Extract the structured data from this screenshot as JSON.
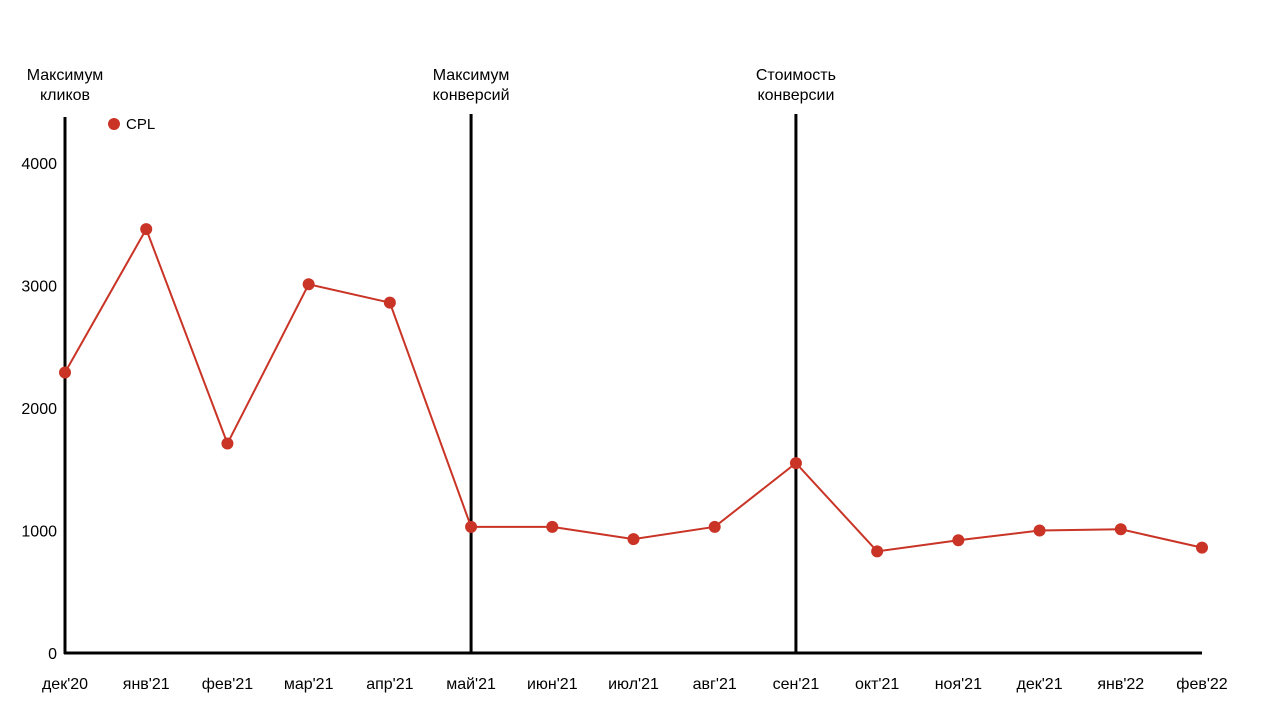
{
  "chart_data": {
    "type": "line",
    "title": "",
    "xlabel": "",
    "ylabel": "",
    "categories": [
      "дек'20",
      "янв'21",
      "фев'21",
      "мар'21",
      "апр'21",
      "май'21",
      "июн'21",
      "июл'21",
      "авг'21",
      "сен'21",
      "окт'21",
      "ноя'21",
      "дек'21",
      "янв'22",
      "фев'22"
    ],
    "series": [
      {
        "name": "CPL",
        "color": "#c93426",
        "values": [
          2290,
          3460,
          1710,
          3010,
          2860,
          1030,
          1030,
          930,
          1030,
          1550,
          830,
          920,
          1000,
          1010,
          860
        ]
      }
    ],
    "yticks": [
      0,
      1000,
      2000,
      3000,
      4000
    ],
    "ylim": [
      0,
      4400
    ],
    "grid": false,
    "legend": "top-left",
    "annotations": [
      {
        "category": "дек'20",
        "lines": [
          "Максимум",
          "кликов"
        ]
      },
      {
        "category": "май'21",
        "lines": [
          "Максимум",
          "конверсий"
        ]
      },
      {
        "category": "сен'21",
        "lines": [
          "Стоимость",
          "конверсии"
        ]
      }
    ]
  }
}
